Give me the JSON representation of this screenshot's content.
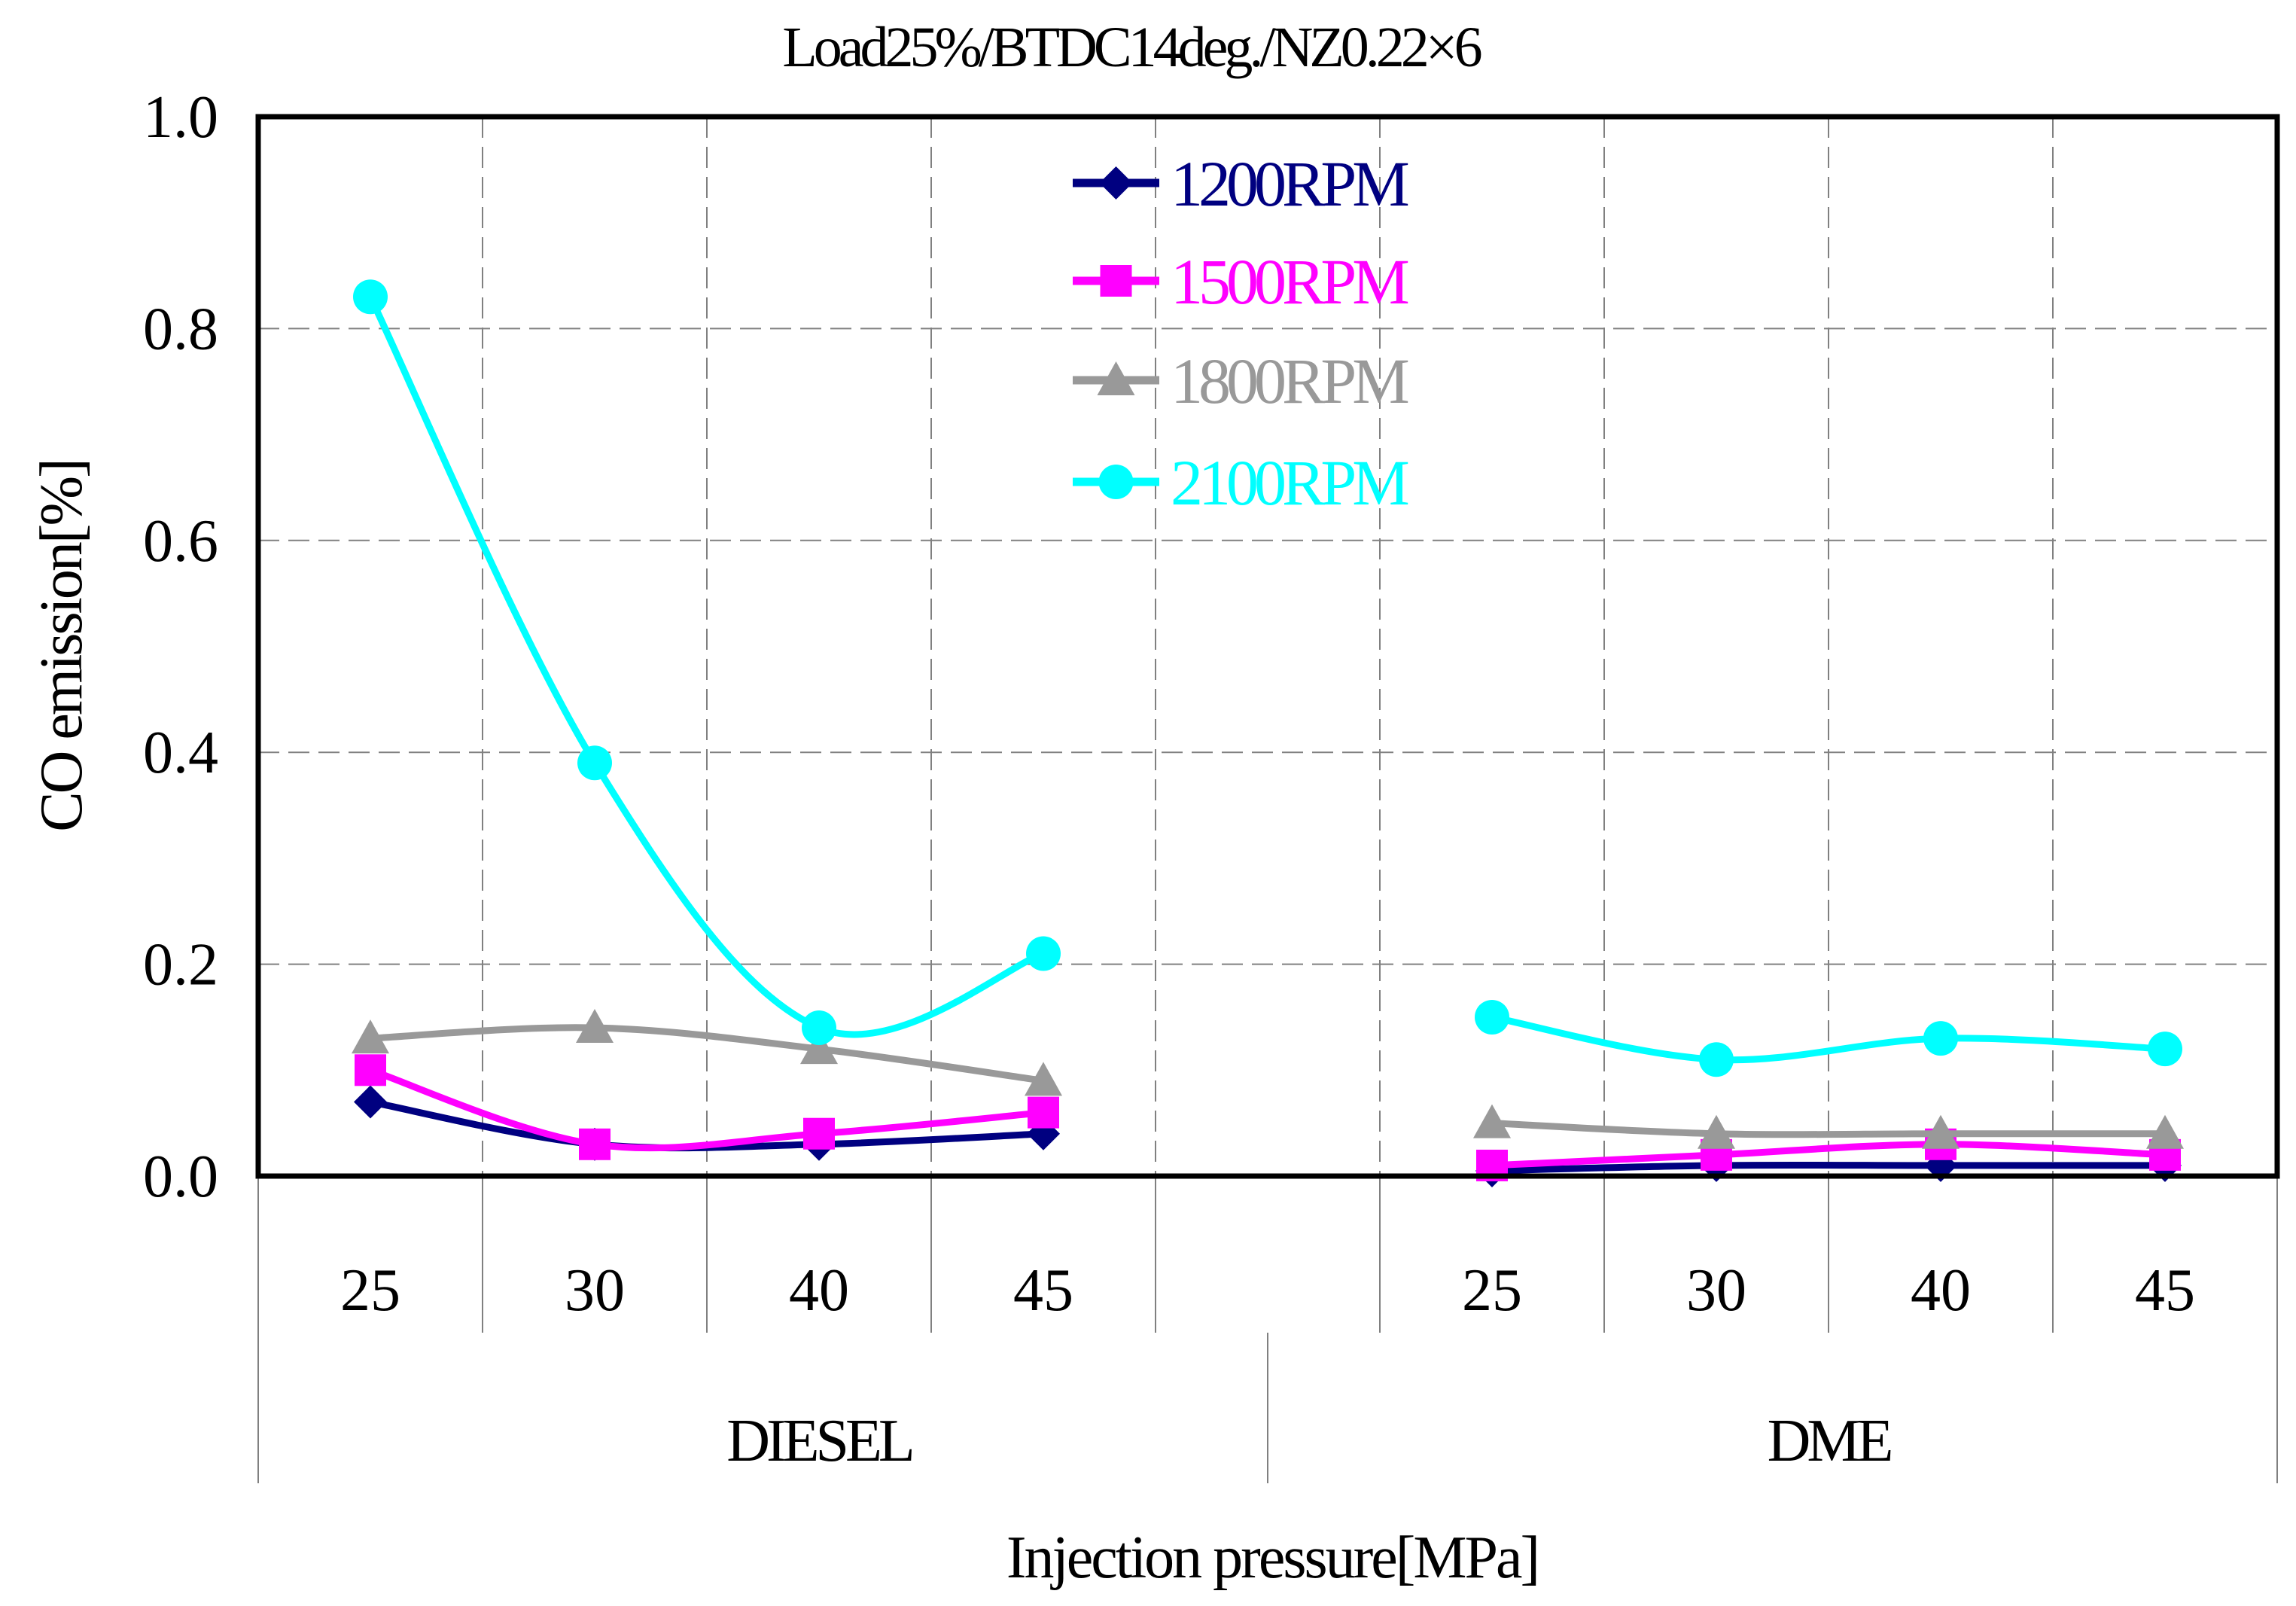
{
  "chart_data": {
    "type": "line",
    "title": "Load25%/BTDC14deg./NZ0.22×6",
    "ylabel": "CO emission[%]",
    "xlabel": "Injection pressure[MPa]",
    "ylim": [
      0,
      1.0
    ],
    "yticks": [
      "0.0",
      "0.2",
      "0.4",
      "0.6",
      "0.8",
      "1.0"
    ],
    "grid": true,
    "legend_position": "top-center",
    "groups": [
      {
        "name": "DIESEL",
        "categories": [
          "25",
          "30",
          "40",
          "45"
        ]
      },
      {
        "name": "DME",
        "categories": [
          "25",
          "30",
          "40",
          "45"
        ]
      }
    ],
    "series": [
      {
        "name": "1200RPM",
        "color": "#000080",
        "marker": "diamond",
        "values": [
          [
            0.07,
            0.03,
            0.03,
            0.04
          ],
          [
            0.005,
            0.01,
            0.01,
            0.01
          ]
        ]
      },
      {
        "name": "1500RPM",
        "color": "#ff00ff",
        "marker": "square",
        "values": [
          [
            0.1,
            0.03,
            0.04,
            0.06
          ],
          [
            0.01,
            0.02,
            0.03,
            0.02
          ]
        ]
      },
      {
        "name": "1800RPM",
        "color": "#999999",
        "marker": "triangle",
        "values": [
          [
            0.13,
            0.14,
            0.12,
            0.09
          ],
          [
            0.05,
            0.04,
            0.04,
            0.04
          ]
        ]
      },
      {
        "name": "2100RPM",
        "color": "#00ffff",
        "marker": "circle",
        "values": [
          [
            0.83,
            0.39,
            0.14,
            0.21
          ],
          [
            0.15,
            0.11,
            0.13,
            0.12
          ]
        ]
      }
    ]
  }
}
